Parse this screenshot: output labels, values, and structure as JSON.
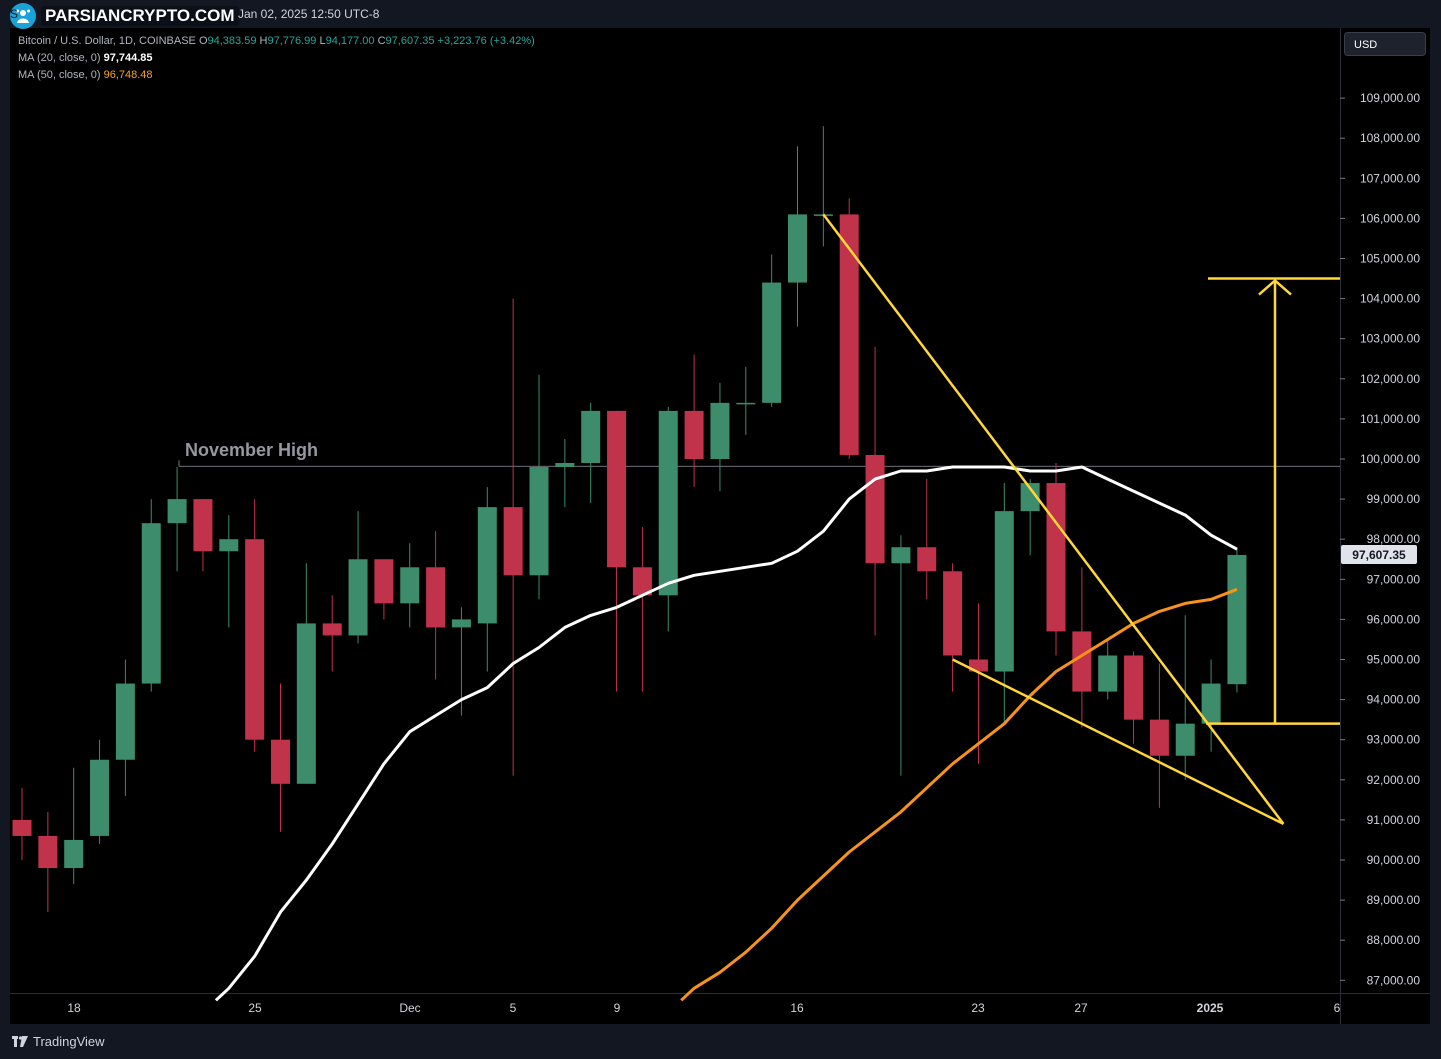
{
  "header": {
    "logo_text": "PARSIANCRYPTO.COM",
    "title_fragment": "S",
    "date": "Jan 02, 2025 12:50 UTC-8"
  },
  "legend": {
    "symbol": "Bitcoin / U.S. Dollar, 1D, COINBASE",
    "o_label": "O",
    "o": "94,383.59",
    "h_label": "H",
    "h": "97,776.99",
    "l_label": "L",
    "l": "94,177.00",
    "c_label": "C",
    "c": "97,607.35",
    "change": "+3,223.76 (+3.42%)",
    "ma20_label": "MA (20, close, 0)",
    "ma20_value": "97,744.85",
    "ma50_label": "MA (50, close, 0)",
    "ma50_value": "96,748.48"
  },
  "currency_button": "USD",
  "last_price_label": "97,607.35",
  "footer_brand": "TradingView",
  "annotation_text": "November High",
  "colors": {
    "up": "#3d8c6b",
    "down": "#c0334a",
    "ma20": "#ffffff",
    "ma50": "#f7931a",
    "drawing": "#ffd738",
    "background": "#000000"
  },
  "chart_data": {
    "type": "candlestick",
    "xlabels": [
      "18",
      "25",
      "Dec",
      "5",
      "9",
      "16",
      "23",
      "27",
      "2025",
      "6"
    ],
    "ylim": [
      86500,
      110800
    ],
    "yticks": [
      87000,
      88000,
      89000,
      90000,
      91000,
      92000,
      93000,
      94000,
      95000,
      96000,
      97000,
      98000,
      99000,
      100000,
      101000,
      102000,
      103000,
      104000,
      105000,
      106000,
      107000,
      108000,
      109000
    ],
    "ytick_labels": [
      "87,000.00",
      "88,000.00",
      "89,000.00",
      "90,000.00",
      "91,000.00",
      "92,000.00",
      "93,000.00",
      "94,000.00",
      "95,000.00",
      "96,000.00",
      "97,000.00",
      "98,000.00",
      "99,000.00",
      "100,000.00",
      "101,000.00",
      "102,000.00",
      "103,000.00",
      "104,000.00",
      "105,000.00",
      "106,000.00",
      "107,000.00",
      "108,000.00",
      "109,000.00"
    ],
    "candles": [
      {
        "date": "2024-11-16",
        "o": 91000,
        "h": 91800,
        "l": 90000,
        "c": 90600
      },
      {
        "date": "2024-11-17",
        "o": 90600,
        "h": 91200,
        "l": 88700,
        "c": 89800
      },
      {
        "date": "2024-11-18",
        "o": 89800,
        "h": 92300,
        "l": 89400,
        "c": 90500
      },
      {
        "date": "2024-11-19",
        "o": 90600,
        "h": 93000,
        "l": 90400,
        "c": 92500
      },
      {
        "date": "2024-11-20",
        "o": 92500,
        "h": 95000,
        "l": 91600,
        "c": 94400
      },
      {
        "date": "2024-11-21",
        "o": 94400,
        "h": 99000,
        "l": 94200,
        "c": 98400
      },
      {
        "date": "2024-11-22",
        "o": 98400,
        "h": 99800,
        "l": 97200,
        "c": 99000
      },
      {
        "date": "2024-11-23",
        "o": 99000,
        "h": 99000,
        "l": 97200,
        "c": 97700
      },
      {
        "date": "2024-11-24",
        "o": 97700,
        "h": 98600,
        "l": 95800,
        "c": 98000
      },
      {
        "date": "2024-11-25",
        "o": 98000,
        "h": 99000,
        "l": 92700,
        "c": 93000
      },
      {
        "date": "2024-11-26",
        "o": 93000,
        "h": 94400,
        "l": 90700,
        "c": 91900
      },
      {
        "date": "2024-11-27",
        "o": 91900,
        "h": 97400,
        "l": 91900,
        "c": 95900
      },
      {
        "date": "2024-11-28",
        "o": 95900,
        "h": 96600,
        "l": 94700,
        "c": 95600
      },
      {
        "date": "2024-11-29",
        "o": 95600,
        "h": 98700,
        "l": 95400,
        "c": 97500
      },
      {
        "date": "2024-11-30",
        "o": 97500,
        "h": 97500,
        "l": 96000,
        "c": 96400
      },
      {
        "date": "2024-12-01",
        "o": 96400,
        "h": 97900,
        "l": 95800,
        "c": 97300
      },
      {
        "date": "2024-12-02",
        "o": 97300,
        "h": 98200,
        "l": 94500,
        "c": 95800
      },
      {
        "date": "2024-12-03",
        "o": 95800,
        "h": 96300,
        "l": 93600,
        "c": 96000
      },
      {
        "date": "2024-12-04",
        "o": 95900,
        "h": 99300,
        "l": 94700,
        "c": 98800
      },
      {
        "date": "2024-12-05",
        "o": 98800,
        "h": 104000,
        "l": 92100,
        "c": 97100
      },
      {
        "date": "2024-12-06",
        "o": 97100,
        "h": 102100,
        "l": 96500,
        "c": 99800
      },
      {
        "date": "2024-12-07",
        "o": 99800,
        "h": 100500,
        "l": 98800,
        "c": 99900
      },
      {
        "date": "2024-12-08",
        "o": 99900,
        "h": 101400,
        "l": 98900,
        "c": 101200
      },
      {
        "date": "2024-12-09",
        "o": 101200,
        "h": 101200,
        "l": 94200,
        "c": 97300
      },
      {
        "date": "2024-12-10",
        "o": 97300,
        "h": 98300,
        "l": 94200,
        "c": 96600
      },
      {
        "date": "2024-12-11",
        "o": 96600,
        "h": 101300,
        "l": 95700,
        "c": 101200
      },
      {
        "date": "2024-12-12",
        "o": 101200,
        "h": 102600,
        "l": 99300,
        "c": 100000
      },
      {
        "date": "2024-12-13",
        "o": 100000,
        "h": 101900,
        "l": 99200,
        "c": 101400
      },
      {
        "date": "2024-12-14",
        "o": 101400,
        "h": 102300,
        "l": 100600,
        "c": 101400
      },
      {
        "date": "2024-12-15",
        "o": 101400,
        "h": 105100,
        "l": 101300,
        "c": 104400
      },
      {
        "date": "2024-12-16",
        "o": 104400,
        "h": 107800,
        "l": 103300,
        "c": 106100
      },
      {
        "date": "2024-12-17",
        "o": 106100,
        "h": 108300,
        "l": 105300,
        "c": 106100
      },
      {
        "date": "2024-12-18",
        "o": 106100,
        "h": 106500,
        "l": 100000,
        "c": 100100
      },
      {
        "date": "2024-12-19",
        "o": 100100,
        "h": 102800,
        "l": 95600,
        "c": 97400
      },
      {
        "date": "2024-12-20",
        "o": 97400,
        "h": 98100,
        "l": 92100,
        "c": 97800
      },
      {
        "date": "2024-12-21",
        "o": 97800,
        "h": 99500,
        "l": 96500,
        "c": 97200
      },
      {
        "date": "2024-12-22",
        "o": 97200,
        "h": 97400,
        "l": 94200,
        "c": 95100
      },
      {
        "date": "2024-12-23",
        "o": 95000,
        "h": 96400,
        "l": 92400,
        "c": 94700
      },
      {
        "date": "2024-12-24",
        "o": 94700,
        "h": 99400,
        "l": 93400,
        "c": 98700
      },
      {
        "date": "2024-12-25",
        "o": 98700,
        "h": 99500,
        "l": 97600,
        "c": 99400
      },
      {
        "date": "2024-12-26",
        "o": 99400,
        "h": 99900,
        "l": 95100,
        "c": 95700
      },
      {
        "date": "2024-12-27",
        "o": 95700,
        "h": 97300,
        "l": 93300,
        "c": 94200
      },
      {
        "date": "2024-12-28",
        "o": 94200,
        "h": 95500,
        "l": 94000,
        "c": 95100
      },
      {
        "date": "2024-12-29",
        "o": 95100,
        "h": 95200,
        "l": 92900,
        "c": 93500
      },
      {
        "date": "2024-12-30",
        "o": 93500,
        "h": 94900,
        "l": 91300,
        "c": 92600
      },
      {
        "date": "2024-12-31",
        "o": 92600,
        "h": 96100,
        "l": 92000,
        "c": 93400
      },
      {
        "date": "2025-01-01",
        "o": 93400,
        "h": 95000,
        "l": 92700,
        "c": 94400
      },
      {
        "date": "2025-01-02",
        "o": 94384,
        "h": 97777,
        "l": 94177,
        "c": 97607
      }
    ],
    "ma20": [
      null,
      null,
      null,
      null,
      null,
      null,
      null,
      null,
      86800,
      87600,
      88700,
      89500,
      90400,
      91400,
      92400,
      93200,
      93600,
      94000,
      94300,
      94900,
      95300,
      95800,
      96100,
      96300,
      96600,
      96900,
      97100,
      97200,
      97300,
      97400,
      97700,
      98200,
      99000,
      99500,
      99700,
      99700,
      99800,
      99800,
      99800,
      99700,
      99700,
      99800,
      99500,
      99200,
      98900,
      98600,
      98100,
      97750
    ],
    "ma50": [
      null,
      null,
      null,
      null,
      null,
      null,
      null,
      null,
      null,
      null,
      null,
      null,
      null,
      null,
      null,
      null,
      null,
      null,
      null,
      null,
      null,
      null,
      null,
      null,
      null,
      null,
      86800,
      87200,
      87700,
      88300,
      89000,
      89600,
      90200,
      90700,
      91200,
      91800,
      92400,
      92900,
      93400,
      94100,
      94700,
      95100,
      95500,
      95900,
      96200,
      96400,
      96500,
      96750
    ],
    "ma20_start_price": 86500,
    "ma50_start_price": 86500,
    "november_high": 99820,
    "triangle": {
      "upper": [
        {
          "date": "2024-12-17",
          "price": 106100
        },
        {
          "date": "2025-01-03",
          "price": 90900
        }
      ],
      "lower": [
        {
          "date": "2024-12-22",
          "price": 95000
        },
        {
          "date": "2025-01-03",
          "price": 90900
        }
      ]
    },
    "target": {
      "base_price": 93400,
      "target_price": 104500,
      "from_date": "2025-01-01"
    }
  }
}
